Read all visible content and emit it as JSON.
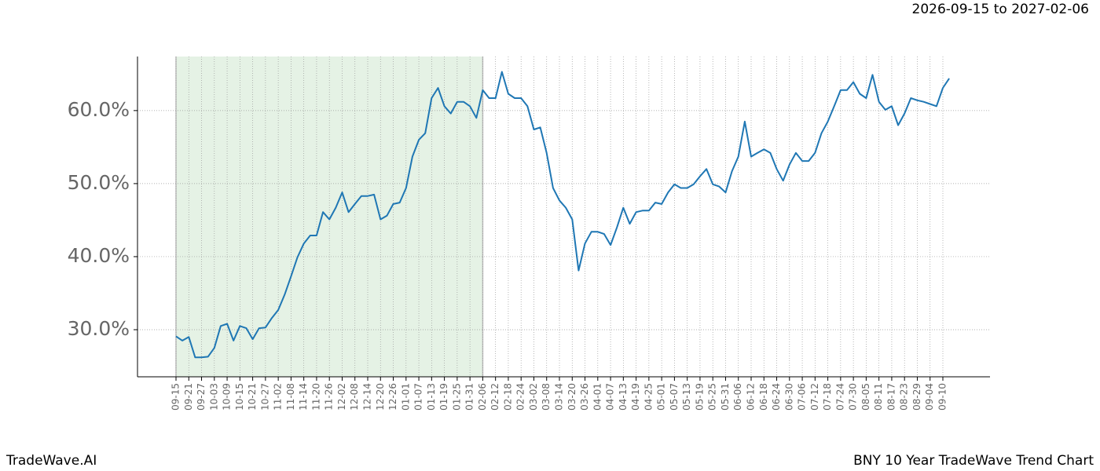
{
  "chart_data": {
    "type": "line",
    "date_range": "2026-09-15 to 2027-02-06",
    "brand": "TradeWave.AI",
    "caption": "BNY 10 Year TradeWave Trend Chart",
    "categories": [
      "09-15",
      null,
      "09-21",
      null,
      "09-27",
      null,
      "10-03",
      null,
      "10-09",
      null,
      "10-15",
      null,
      "10-21",
      null,
      "10-27",
      null,
      "11-02",
      null,
      "11-08",
      null,
      "11-14",
      null,
      "11-20",
      null,
      "11-26",
      null,
      "12-02",
      null,
      "12-08",
      null,
      "12-14",
      null,
      "12-20",
      null,
      "12-26",
      null,
      "01-01",
      null,
      "01-07",
      null,
      "01-13",
      null,
      "01-19",
      null,
      "01-25",
      null,
      "01-31",
      null,
      "02-06",
      null,
      "02-12",
      null,
      "02-18",
      null,
      "02-24",
      null,
      "03-02",
      null,
      "03-08",
      null,
      "03-14",
      null,
      "03-20",
      null,
      "03-26",
      null,
      "04-01",
      null,
      "04-07",
      null,
      "04-13",
      null,
      "04-19",
      null,
      "04-25",
      null,
      "05-01",
      null,
      "05-07",
      null,
      "05-13",
      null,
      "05-19",
      null,
      "05-25",
      null,
      "05-31",
      null,
      "06-06",
      null,
      "06-12",
      null,
      "06-18",
      null,
      "06-24",
      null,
      "06-30",
      null,
      "07-06",
      null,
      "07-12",
      null,
      "07-18",
      null,
      "07-24",
      null,
      "07-30",
      null,
      "08-05",
      null,
      "08-11",
      null,
      "08-17",
      null,
      "08-23",
      null,
      "08-29",
      null,
      "09-04",
      null,
      "09-10",
      null
    ],
    "series": [
      {
        "color": "#1f77b4",
        "values": [
          29.1,
          28.5,
          29.0,
          26.2,
          26.2,
          26.3,
          27.5,
          30.5,
          30.8,
          28.5,
          30.5,
          30.2,
          28.7,
          30.2,
          30.3,
          31.6,
          32.7,
          34.8,
          37.3,
          39.9,
          41.8,
          42.9,
          42.9,
          46.1,
          45.1,
          46.7,
          48.8,
          46.1,
          47.2,
          48.3,
          48.3,
          48.5,
          45.1,
          45.6,
          47.2,
          47.4,
          49.4,
          53.7,
          56.0,
          56.9,
          61.7,
          63.1,
          60.6,
          59.6,
          61.2,
          61.2,
          60.6,
          59.0,
          62.8,
          61.7,
          61.7,
          65.3,
          62.3,
          61.7,
          61.7,
          60.6,
          57.4,
          57.7,
          54.2,
          49.4,
          47.7,
          46.7,
          45.1,
          38.1,
          41.8,
          43.4,
          43.4,
          43.1,
          41.6,
          44.0,
          46.7,
          44.5,
          46.1,
          46.3,
          46.3,
          47.4,
          47.2,
          48.8,
          49.9,
          49.4,
          49.4,
          49.9,
          51.0,
          52.0,
          49.9,
          49.6,
          48.8,
          51.7,
          53.7,
          58.5,
          53.7,
          54.2,
          54.7,
          54.2,
          52.0,
          50.4,
          52.6,
          54.2,
          53.1,
          53.1,
          54.2,
          56.9,
          58.5,
          60.6,
          62.8,
          62.8,
          63.9,
          62.3,
          61.7,
          64.9,
          61.2,
          60.1,
          60.6,
          58.0,
          59.6,
          61.7,
          61.4,
          61.2,
          60.9,
          60.6,
          63.1,
          64.4
        ]
      }
    ],
    "ylim": [
      23.55,
      67.4
    ],
    "yticks": [
      {
        "value": 30,
        "label": "30.0%"
      },
      {
        "value": 40,
        "label": "40.0%"
      },
      {
        "value": 50,
        "label": "50.0%"
      },
      {
        "value": 60,
        "label": "60.0%"
      }
    ],
    "grid": true,
    "highlight": {
      "from": "09-15",
      "to": "02-06",
      "color": "#e5f2e5"
    }
  }
}
